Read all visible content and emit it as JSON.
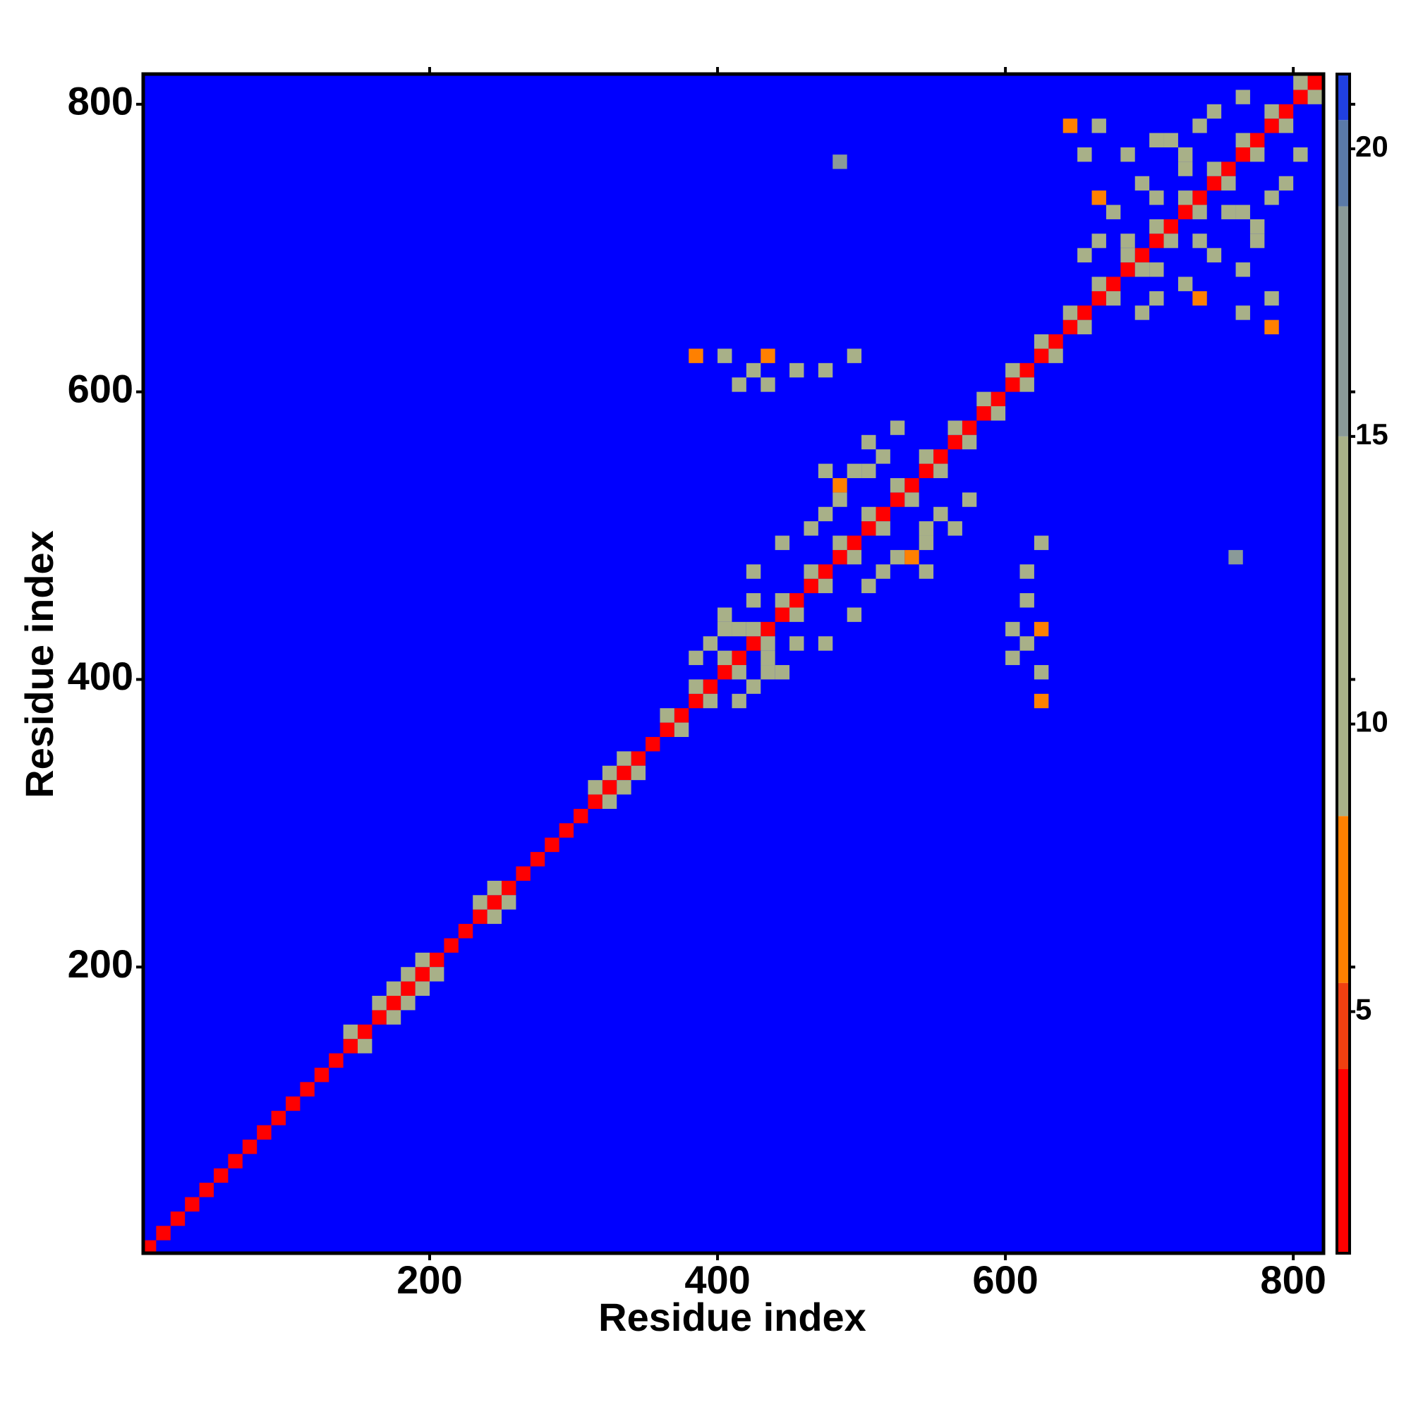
{
  "chart_data": {
    "type": "heatmap",
    "xlabel": "Residue index",
    "ylabel": "Residue index",
    "xlim": [
      1,
      821
    ],
    "ylim": [
      1,
      821
    ],
    "xticks": [
      200,
      400,
      600,
      800
    ],
    "yticks": [
      200,
      400,
      600,
      800
    ],
    "zlim": [
      0.8,
      21.3
    ],
    "zticks": [
      5,
      10,
      15,
      20
    ],
    "background_color": "#0000ff",
    "symmetric": true,
    "bin": 10,
    "colorscale": [
      [
        0.8,
        "#ff0000"
      ],
      [
        4,
        "#f04010"
      ],
      [
        5.5,
        "#ff8000"
      ],
      [
        8.4,
        "#a8b088"
      ],
      [
        15,
        "#8a9a98"
      ],
      [
        19,
        "#5a7aa8"
      ],
      [
        20.5,
        "#2040e0"
      ]
    ],
    "cells": [
      [
        5,
        5,
        2
      ],
      [
        15,
        15,
        2
      ],
      [
        25,
        25,
        2
      ],
      [
        35,
        35,
        2
      ],
      [
        45,
        45,
        2
      ],
      [
        55,
        55,
        2
      ],
      [
        65,
        65,
        2
      ],
      [
        75,
        75,
        2
      ],
      [
        85,
        85,
        2
      ],
      [
        95,
        95,
        2
      ],
      [
        105,
        105,
        2
      ],
      [
        115,
        115,
        2
      ],
      [
        125,
        125,
        2
      ],
      [
        135,
        135,
        2
      ],
      [
        145,
        145,
        2
      ],
      [
        155,
        155,
        2
      ],
      [
        165,
        165,
        2
      ],
      [
        175,
        175,
        2
      ],
      [
        185,
        185,
        2
      ],
      [
        195,
        195,
        2
      ],
      [
        205,
        205,
        2
      ],
      [
        215,
        215,
        2
      ],
      [
        225,
        225,
        2
      ],
      [
        235,
        235,
        2
      ],
      [
        245,
        245,
        2
      ],
      [
        255,
        255,
        2
      ],
      [
        265,
        265,
        2
      ],
      [
        275,
        275,
        2
      ],
      [
        285,
        285,
        2
      ],
      [
        295,
        295,
        2
      ],
      [
        305,
        305,
        2
      ],
      [
        315,
        315,
        2
      ],
      [
        325,
        325,
        2
      ],
      [
        335,
        335,
        2
      ],
      [
        345,
        345,
        2
      ],
      [
        355,
        355,
        2
      ],
      [
        365,
        365,
        2
      ],
      [
        375,
        375,
        2
      ],
      [
        385,
        385,
        2
      ],
      [
        395,
        395,
        2
      ],
      [
        405,
        405,
        2
      ],
      [
        415,
        415,
        2
      ],
      [
        425,
        425,
        2
      ],
      [
        435,
        435,
        2
      ],
      [
        445,
        445,
        2
      ],
      [
        455,
        455,
        2
      ],
      [
        465,
        465,
        2
      ],
      [
        475,
        475,
        2
      ],
      [
        485,
        485,
        2
      ],
      [
        495,
        495,
        2
      ],
      [
        505,
        505,
        2
      ],
      [
        515,
        515,
        2
      ],
      [
        525,
        525,
        2
      ],
      [
        535,
        535,
        2
      ],
      [
        545,
        545,
        2
      ],
      [
        555,
        555,
        2
      ],
      [
        565,
        565,
        2
      ],
      [
        575,
        575,
        2
      ],
      [
        585,
        585,
        2
      ],
      [
        595,
        595,
        2
      ],
      [
        605,
        605,
        2
      ],
      [
        615,
        615,
        2
      ],
      [
        625,
        625,
        2
      ],
      [
        635,
        635,
        2
      ],
      [
        645,
        645,
        2
      ],
      [
        655,
        655,
        2
      ],
      [
        665,
        665,
        2
      ],
      [
        675,
        675,
        2
      ],
      [
        685,
        685,
        2
      ],
      [
        695,
        695,
        2
      ],
      [
        705,
        705,
        2
      ],
      [
        715,
        715,
        2
      ],
      [
        725,
        725,
        2
      ],
      [
        735,
        735,
        2
      ],
      [
        745,
        745,
        2
      ],
      [
        755,
        755,
        2
      ],
      [
        765,
        765,
        2
      ],
      [
        775,
        775,
        2
      ],
      [
        785,
        785,
        2
      ],
      [
        795,
        795,
        2
      ],
      [
        805,
        805,
        2
      ],
      [
        815,
        815,
        2
      ],
      [
        145,
        155,
        11
      ],
      [
        165,
        175,
        11
      ],
      [
        175,
        185,
        11
      ],
      [
        185,
        195,
        11
      ],
      [
        195,
        205,
        11
      ],
      [
        235,
        245,
        11
      ],
      [
        245,
        255,
        11
      ],
      [
        315,
        325,
        11
      ],
      [
        325,
        335,
        11
      ],
      [
        335,
        345,
        11
      ],
      [
        365,
        375,
        11
      ],
      [
        385,
        395,
        11
      ],
      [
        405,
        415,
        11
      ],
      [
        425,
        435,
        11
      ],
      [
        445,
        455,
        11
      ],
      [
        465,
        475,
        11
      ],
      [
        485,
        495,
        11
      ],
      [
        505,
        515,
        11
      ],
      [
        525,
        535,
        11
      ],
      [
        545,
        555,
        11
      ],
      [
        565,
        575,
        11
      ],
      [
        585,
        595,
        11
      ],
      [
        605,
        615,
        11
      ],
      [
        625,
        635,
        11
      ],
      [
        645,
        655,
        11
      ],
      [
        665,
        675,
        11
      ],
      [
        685,
        695,
        11
      ],
      [
        705,
        715,
        11
      ],
      [
        725,
        735,
        11
      ],
      [
        745,
        755,
        11
      ],
      [
        765,
        775,
        11
      ],
      [
        785,
        795,
        11
      ],
      [
        805,
        815,
        11
      ],
      [
        395,
        425,
        12
      ],
      [
        405,
        445,
        11
      ],
      [
        415,
        435,
        13
      ],
      [
        385,
        415,
        12
      ],
      [
        425,
        455,
        12
      ],
      [
        405,
        435,
        11
      ],
      [
        475,
        515,
        11
      ],
      [
        485,
        525,
        12
      ],
      [
        495,
        545,
        11
      ],
      [
        505,
        545,
        12
      ],
      [
        475,
        545,
        9
      ],
      [
        505,
        565,
        11
      ],
      [
        515,
        555,
        12
      ],
      [
        465,
        505,
        12
      ],
      [
        445,
        495,
        11
      ],
      [
        425,
        475,
        12
      ],
      [
        525,
        575,
        11
      ],
      [
        485,
        535,
        7
      ],
      [
        425,
        615,
        11
      ],
      [
        435,
        625,
        7
      ],
      [
        415,
        605,
        12
      ],
      [
        385,
        625,
        8
      ],
      [
        405,
        625,
        12
      ],
      [
        475,
        615,
        12
      ],
      [
        495,
        625,
        11
      ],
      [
        435,
        605,
        11
      ],
      [
        455,
        615,
        12
      ],
      [
        655,
        765,
        9
      ],
      [
        665,
        735,
        8
      ],
      [
        685,
        705,
        11
      ],
      [
        695,
        745,
        12
      ],
      [
        705,
        735,
        11
      ],
      [
        675,
        725,
        12
      ],
      [
        715,
        775,
        11
      ],
      [
        735,
        785,
        12
      ],
      [
        655,
        695,
        11
      ],
      [
        665,
        785,
        11
      ],
      [
        645,
        785,
        7
      ],
      [
        705,
        775,
        12
      ],
      [
        725,
        755,
        10
      ],
      [
        745,
        795,
        12
      ],
      [
        765,
        805,
        11
      ],
      [
        685,
        765,
        12
      ],
      [
        665,
        705,
        12
      ],
      [
        725,
        765,
        11
      ],
      [
        485,
        760,
        15
      ]
    ]
  }
}
